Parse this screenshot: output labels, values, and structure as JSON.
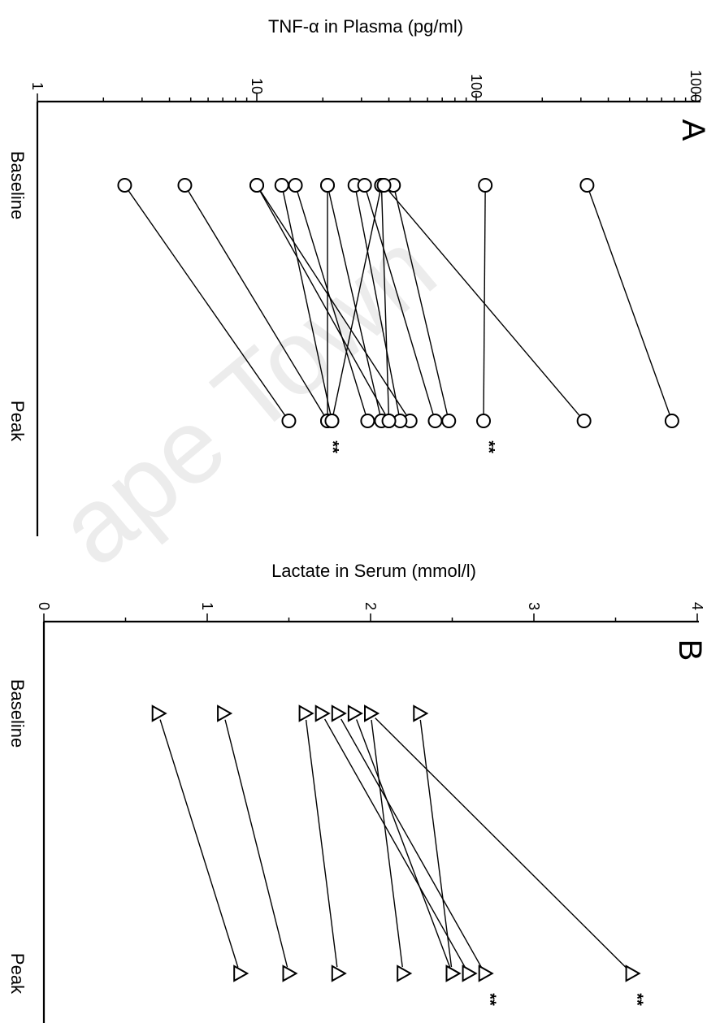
{
  "chart_data": [
    {
      "panel_label": "A",
      "type": "line",
      "log_scale": true,
      "ylabel": "TNF-α in Plasma (pg/ml)",
      "ylim": [
        1,
        1000
      ],
      "yticks": [
        "1",
        "10",
        "100",
        "1000"
      ],
      "categories": [
        "Baseline",
        "Peak"
      ],
      "marker": "circle",
      "series": [
        {
          "values": [
            2.5,
            14
          ]
        },
        {
          "values": [
            4.7,
            21
          ]
        },
        {
          "values": [
            10,
            40
          ]
        },
        {
          "values": [
            10,
            50
          ]
        },
        {
          "values": [
            13,
            22
          ]
        },
        {
          "values": [
            15,
            32
          ]
        },
        {
          "values": [
            21,
            21
          ]
        },
        {
          "values": [
            21,
            37
          ]
        },
        {
          "values": [
            28,
            45
          ]
        },
        {
          "values": [
            31,
            65
          ]
        },
        {
          "values": [
            37,
            40
          ]
        },
        {
          "values": [
            37,
            22
          ]
        },
        {
          "values": [
            42,
            75
          ]
        },
        {
          "values": [
            110,
            108
          ]
        },
        {
          "values": [
            38,
            310
          ]
        },
        {
          "values": [
            320,
            780
          ]
        }
      ],
      "annotations": [
        {
          "category": "Peak",
          "value": 21,
          "text": "**"
        },
        {
          "category": "Peak",
          "value": 108,
          "text": "**"
        }
      ]
    },
    {
      "panel_label": "B",
      "type": "line",
      "log_scale": false,
      "ylabel": "Lactate in Serum (mmol/l)",
      "ylim": [
        0,
        4
      ],
      "yticks": [
        "0",
        "1",
        "2",
        "3",
        "4"
      ],
      "categories": [
        "Baseline",
        "Peak"
      ],
      "marker": "triangle",
      "series": [
        {
          "values": [
            0.7,
            1.2
          ]
        },
        {
          "values": [
            1.1,
            1.5
          ]
        },
        {
          "values": [
            1.6,
            1.8
          ]
        },
        {
          "values": [
            1.7,
            2.6
          ]
        },
        {
          "values": [
            1.8,
            2.7
          ]
        },
        {
          "values": [
            1.9,
            2.5
          ]
        },
        {
          "values": [
            2.0,
            2.2
          ]
        },
        {
          "values": [
            2.0,
            3.6
          ]
        },
        {
          "values": [
            2.3,
            2.5
          ]
        }
      ],
      "annotations": [
        {
          "category": "Peak",
          "value": 2.7,
          "text": "**"
        },
        {
          "category": "Peak",
          "value": 3.6,
          "text": "**"
        }
      ]
    }
  ],
  "watermark": "ape Town"
}
